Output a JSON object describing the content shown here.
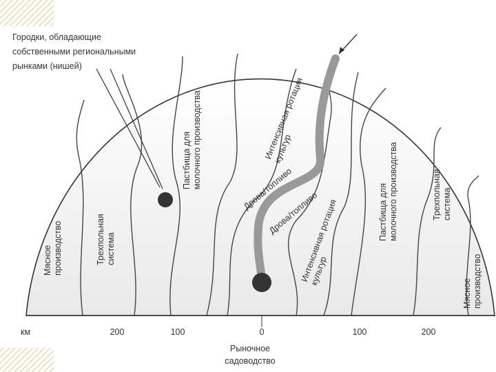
{
  "callout": {
    "lines": [
      "Городки, обладающие",
      "собственными региональными",
      "рынками (нишей)"
    ]
  },
  "zones": [
    {
      "lines": [
        "Мясное",
        "производство"
      ]
    },
    {
      "lines": [
        "Трехпольная",
        "система"
      ]
    },
    {
      "lines": [
        "Пастбища для",
        "молочного производства"
      ]
    },
    {
      "lines": [
        "Интенсивная ротация",
        "культур"
      ]
    },
    {
      "lines": [
        "Дрова/топливо"
      ]
    },
    {
      "lines": [
        "Дрова/топливо"
      ]
    },
    {
      "lines": [
        "Интенсивная ротация",
        "культур"
      ]
    },
    {
      "lines": [
        "Пастбища для",
        "молочного производства"
      ]
    },
    {
      "lines": [
        "Трехпольная",
        "система"
      ]
    },
    {
      "lines": [
        "Мясное",
        "производство"
      ]
    }
  ],
  "axis": {
    "unit": "км",
    "ticks": [
      "200",
      "100",
      "0",
      "100",
      "200"
    ]
  },
  "center_label": {
    "lines": [
      "Рыночное",
      "садоводство"
    ]
  }
}
